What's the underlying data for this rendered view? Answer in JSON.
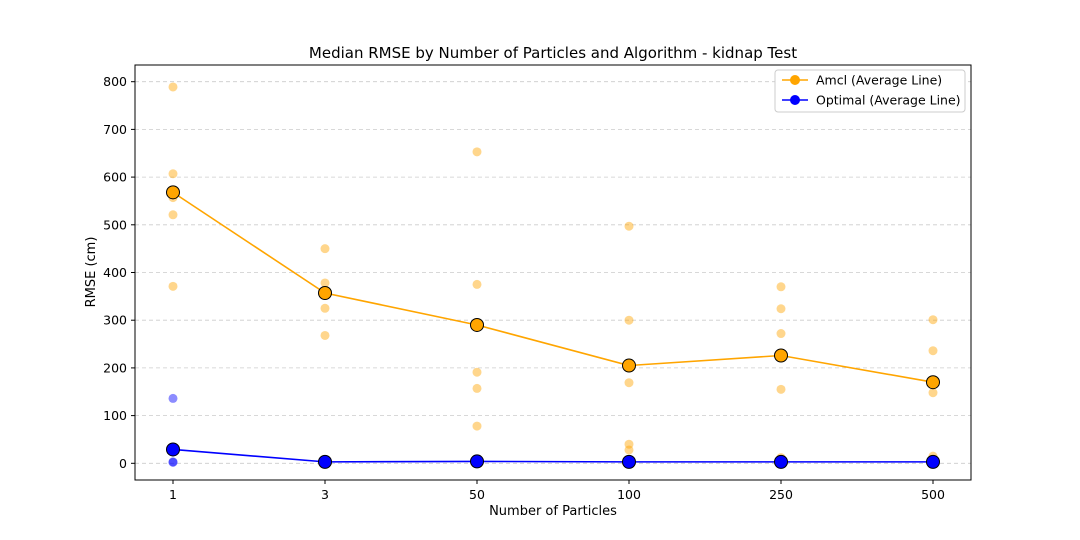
{
  "chart_data": {
    "type": "scatter",
    "title": "Median RMSE by Number of Particles and Algorithm - kidnap Test",
    "xlabel": "Number of Particles",
    "ylabel": "RMSE (cm)",
    "categories": [
      "1",
      "3",
      "50",
      "100",
      "250",
      "500"
    ],
    "ylim": [
      -35,
      835
    ],
    "yticks": [
      0,
      100,
      200,
      300,
      400,
      500,
      600,
      700,
      800
    ],
    "grid": "y-dashed",
    "legend_position": "top-right",
    "series": [
      {
        "name": "Amcl (Average Line)",
        "color": "#FFA500",
        "average": [
          568,
          357,
          290,
          205,
          226,
          170
        ],
        "points": [
          [
            0,
            789
          ],
          [
            0,
            607
          ],
          [
            0,
            557
          ],
          [
            0,
            521
          ],
          [
            0,
            371
          ],
          [
            1,
            450
          ],
          [
            1,
            378
          ],
          [
            1,
            325
          ],
          [
            1,
            268
          ],
          [
            2,
            653
          ],
          [
            2,
            375
          ],
          [
            2,
            191
          ],
          [
            2,
            157
          ],
          [
            2,
            78
          ],
          [
            3,
            497
          ],
          [
            3,
            300
          ],
          [
            3,
            169
          ],
          [
            3,
            40
          ],
          [
            3,
            28
          ],
          [
            4,
            370
          ],
          [
            4,
            324
          ],
          [
            4,
            272
          ],
          [
            4,
            155
          ],
          [
            4,
            12
          ],
          [
            5,
            301
          ],
          [
            5,
            236
          ],
          [
            5,
            148
          ],
          [
            5,
            15
          ]
        ]
      },
      {
        "name": "Optimal (Average Line)",
        "color": "#0000FF",
        "average": [
          29,
          3,
          4,
          3,
          3,
          3
        ],
        "points": [
          [
            0,
            136
          ],
          [
            0,
            3
          ],
          [
            0,
            2
          ],
          [
            1,
            3
          ],
          [
            1,
            2
          ],
          [
            2,
            4
          ],
          [
            2,
            3
          ],
          [
            3,
            3
          ],
          [
            3,
            2
          ],
          [
            4,
            4
          ],
          [
            4,
            2
          ],
          [
            5,
            3
          ],
          [
            5,
            2
          ]
        ]
      }
    ]
  }
}
